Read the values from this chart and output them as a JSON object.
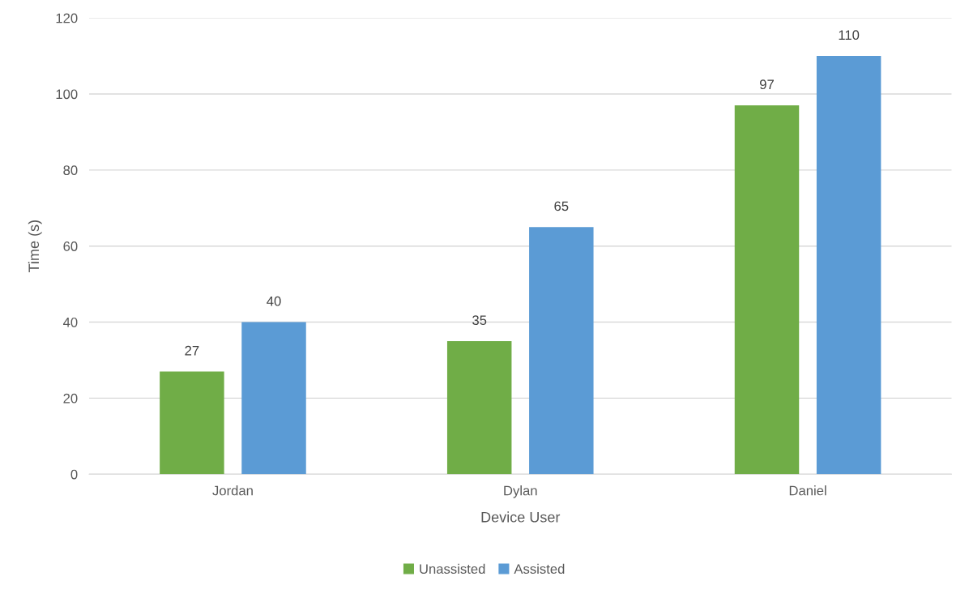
{
  "chart_data": {
    "type": "bar",
    "xlabel": "Device User",
    "ylabel": "Time (s)",
    "categories": [
      "Jordan",
      "Dylan",
      "Daniel"
    ],
    "series": [
      {
        "name": "Unassisted",
        "color": "#70ad47",
        "values": [
          27,
          35,
          97
        ]
      },
      {
        "name": "Assisted",
        "color": "#5b9bd5",
        "values": [
          40,
          65,
          110
        ]
      }
    ],
    "ylim": [
      0,
      120
    ],
    "yticks": [
      0,
      20,
      40,
      60,
      80,
      100,
      120
    ],
    "grid": "y",
    "legend": "bottom",
    "data_labels": true
  }
}
